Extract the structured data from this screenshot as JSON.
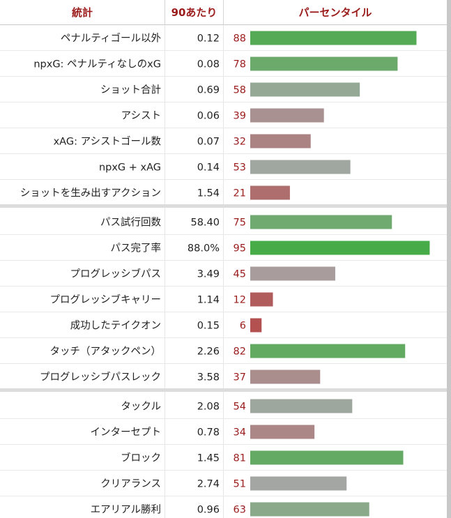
{
  "header": {
    "stat": "統計",
    "per90": "90あたり",
    "percentile": "パーセンタイル"
  },
  "colors": {
    "header_text": "#9b1b1b",
    "pct_text": "#9b1b1b",
    "high": "#3cad3c",
    "mid": "#a6a6a6",
    "low": "#b54545"
  },
  "chart_data": {
    "type": "bar",
    "title": "",
    "xlim": [
      0,
      100
    ],
    "groups": [
      {
        "rows": [
          {
            "label": "ペナルティゴール以外",
            "per90": "0.12",
            "percentile": 88
          },
          {
            "label": "npxG: ペナルティなしのxG",
            "per90": "0.08",
            "percentile": 78
          },
          {
            "label": "ショット合計",
            "per90": "0.69",
            "percentile": 58
          },
          {
            "label": "アシスト",
            "per90": "0.06",
            "percentile": 39
          },
          {
            "label": "xAG: アシストゴール数",
            "per90": "0.07",
            "percentile": 32
          },
          {
            "label": "npxG + xAG",
            "per90": "0.14",
            "percentile": 53
          },
          {
            "label": "ショットを生み出すアクション",
            "per90": "1.54",
            "percentile": 21
          }
        ]
      },
      {
        "rows": [
          {
            "label": "パス試行回数",
            "per90": "58.40",
            "percentile": 75
          },
          {
            "label": "パス完了率",
            "per90": "88.0%",
            "percentile": 95
          },
          {
            "label": "プログレッシブパス",
            "per90": "3.49",
            "percentile": 45
          },
          {
            "label": "プログレッシブキャリー",
            "per90": "1.14",
            "percentile": 12
          },
          {
            "label": "成功したテイクオン",
            "per90": "0.15",
            "percentile": 6
          },
          {
            "label": "タッチ（アタックペン）",
            "per90": "2.26",
            "percentile": 82
          },
          {
            "label": "プログレッシブパスレック",
            "per90": "3.58",
            "percentile": 37
          }
        ]
      },
      {
        "rows": [
          {
            "label": "タックル",
            "per90": "2.08",
            "percentile": 54
          },
          {
            "label": "インターセプト",
            "per90": "0.78",
            "percentile": 34
          },
          {
            "label": "ブロック",
            "per90": "1.45",
            "percentile": 81
          },
          {
            "label": "クリアランス",
            "per90": "2.74",
            "percentile": 51
          },
          {
            "label": "エアリアル勝利",
            "per90": "0.96",
            "percentile": 63
          }
        ]
      }
    ]
  }
}
